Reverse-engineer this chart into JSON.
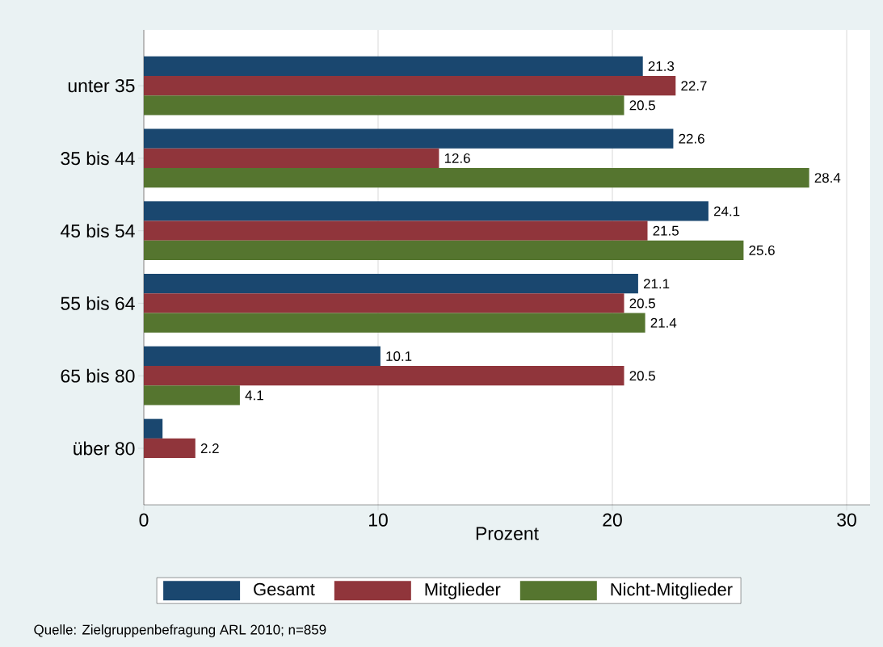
{
  "chart_data": {
    "type": "bar",
    "orientation": "horizontal",
    "xlabel": "Prozent",
    "categories": [
      "unter 35",
      "35 bis 44",
      "45 bis 54",
      "55 bis 64",
      "65 bis 80",
      "über 80"
    ],
    "series": [
      {
        "name": "Gesamt",
        "color": "#1a476f",
        "values": [
          21.3,
          22.6,
          24.1,
          21.1,
          10.1,
          0.8
        ],
        "value_labels": [
          "21.3",
          "22.6",
          "24.1",
          "21.1",
          "10.1",
          null
        ]
      },
      {
        "name": "Mitglieder",
        "color": "#90353b",
        "values": [
          22.7,
          12.6,
          21.5,
          20.5,
          20.5,
          2.2
        ],
        "value_labels": [
          "22.7",
          "12.6",
          "21.5",
          "20.5",
          "20.5",
          "2.2"
        ]
      },
      {
        "name": "Nicht-Mitglieder",
        "color": "#55752f",
        "values": [
          20.5,
          28.4,
          25.6,
          21.4,
          4.1,
          null
        ],
        "value_labels": [
          "20.5",
          "28.4",
          "25.6",
          "21.4",
          "4.1",
          null
        ]
      }
    ],
    "xlim": [
      0,
      31
    ],
    "xticks": [
      0,
      10,
      20,
      30
    ],
    "grid": "x",
    "legend": "bottom",
    "annotations": [
      "Quelle: Zielgruppenbefragung ARL 2010; n=859"
    ]
  }
}
